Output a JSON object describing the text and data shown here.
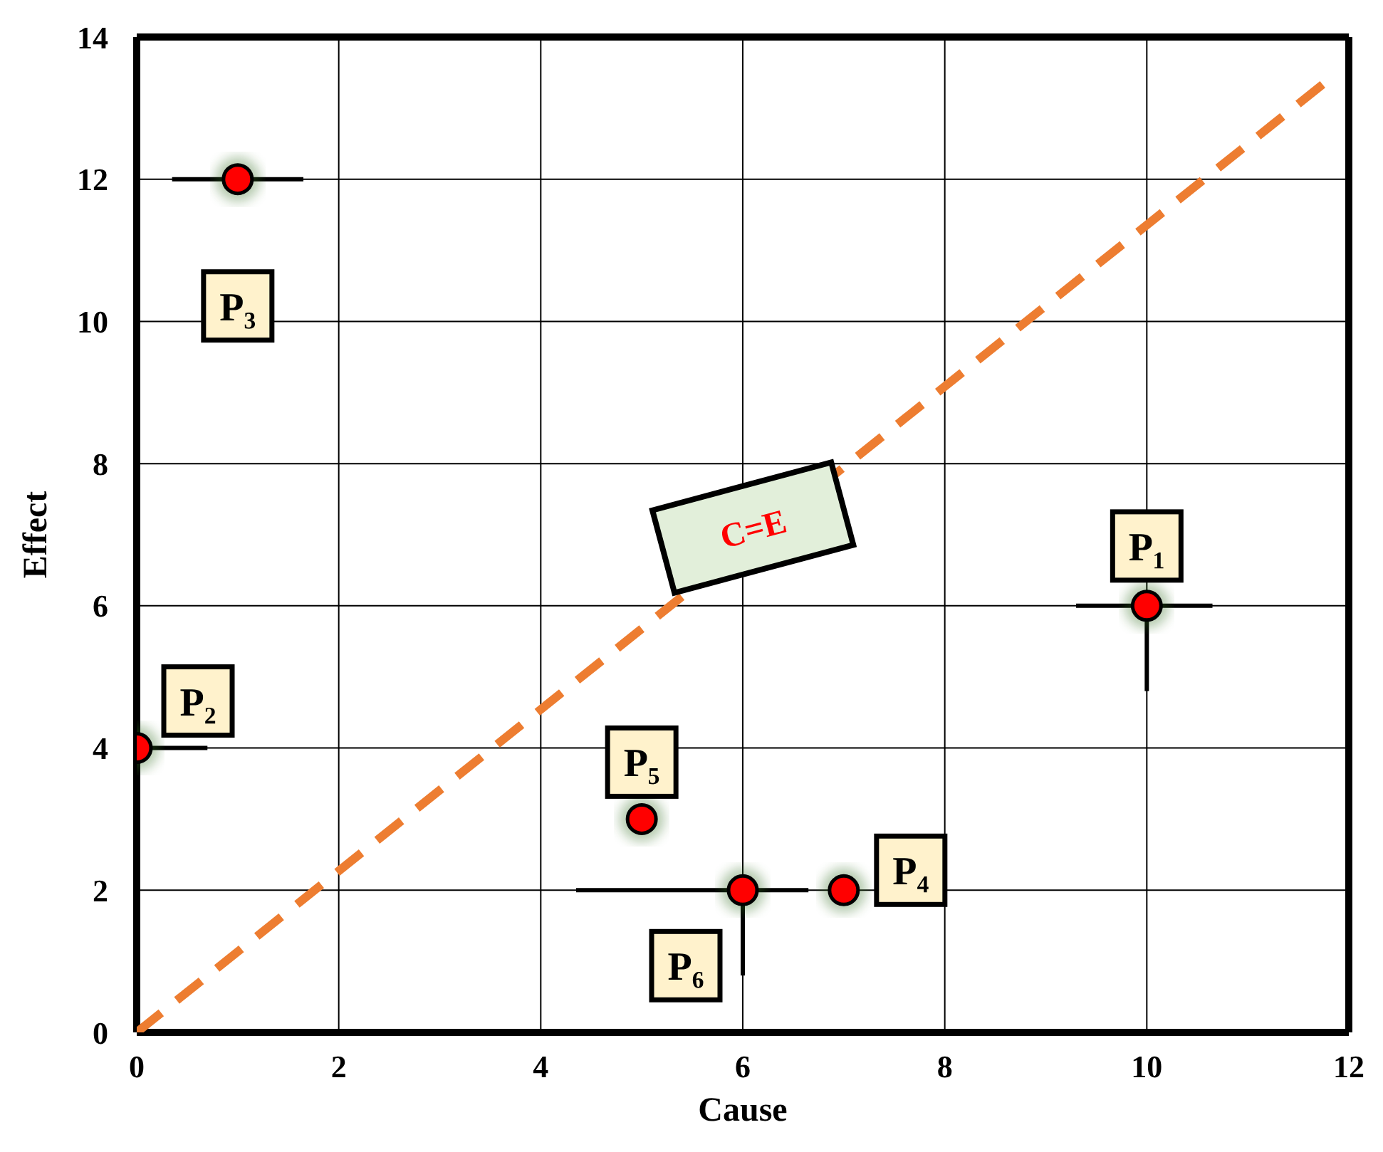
{
  "chart_data": {
    "type": "scatter",
    "xlabel": "Cause",
    "ylabel": "Effect",
    "xlim": [
      0,
      12
    ],
    "xticks": [
      0,
      2,
      4,
      6,
      8,
      10,
      12
    ],
    "ylim": [
      0,
      14
    ],
    "yticks": [
      0,
      2,
      4,
      6,
      8,
      10,
      12,
      14
    ],
    "grid": true,
    "legend": false,
    "series": [
      {
        "color": "#ff0000",
        "marker": "circle",
        "x": [
          10,
          0,
          1,
          7,
          5,
          6
        ],
        "values": [
          6,
          4,
          12,
          2,
          3,
          2
        ],
        "errors": [
          [
            4.8,
            6
          ],
          null,
          null,
          null,
          null,
          [
            0.8,
            2
          ]
        ],
        "xerrors": [
          [
            9.3,
            10.65
          ],
          [
            0,
            0.7
          ],
          [
            0.35,
            1.65
          ],
          null,
          null,
          [
            4.35,
            6.65
          ]
        ]
      },
      {
        "type": "line",
        "color": "#ed7d31",
        "line_style": "dashed",
        "marker": "none",
        "x": [
          0,
          11.8
        ],
        "values": [
          0,
          13.4
        ]
      }
    ],
    "annotations": [
      {
        "text": "P₁",
        "x": 10,
        "y": 6
      },
      {
        "text": "P₂",
        "x": 0,
        "y": 4
      },
      {
        "text": "P₃",
        "x": 1,
        "y": 12
      },
      {
        "text": "P₄",
        "x": 7,
        "y": 2
      },
      {
        "text": "P₅",
        "x": 5,
        "y": 3
      },
      {
        "text": "P₆",
        "x": 6,
        "y": 2
      },
      {
        "text": "C=E",
        "x": 6.1,
        "y": 7.1
      }
    ]
  }
}
